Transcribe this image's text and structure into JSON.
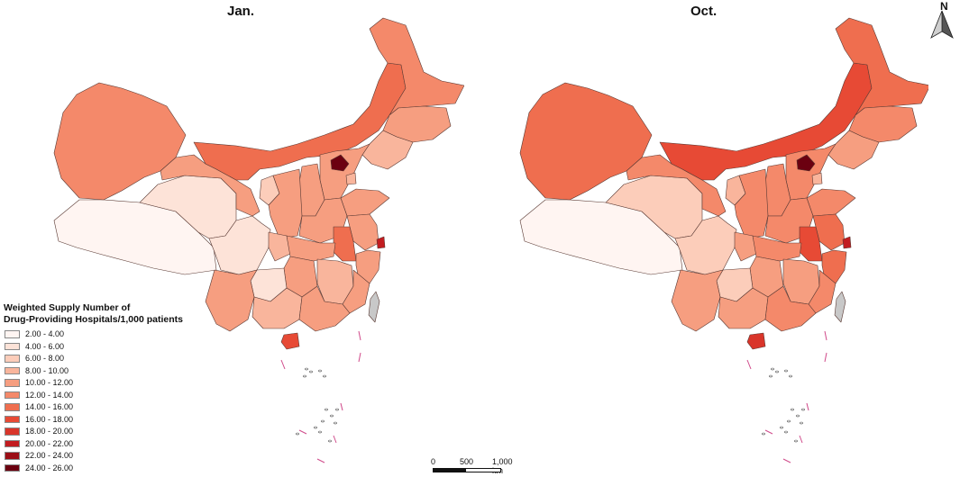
{
  "maps": [
    {
      "id": "jan",
      "title": "Jan."
    },
    {
      "id": "oct",
      "title": "Oct."
    }
  ],
  "compass": {
    "label": "N",
    "icon": "north-arrow-icon"
  },
  "legend": {
    "title_line1": "Weighted Supply Number of",
    "title_line2": "Drug-Providing Hospitals/1,000 patients",
    "classes": [
      {
        "label": "2.00 - 4.00",
        "color": "#fff5f2"
      },
      {
        "label": "4.00 - 6.00",
        "color": "#fde3d8"
      },
      {
        "label": "6.00 - 8.00",
        "color": "#fccdba"
      },
      {
        "label": "8.00 - 10.00",
        "color": "#f9b59c"
      },
      {
        "label": "10.00 - 12.00",
        "color": "#f69e80"
      },
      {
        "label": "12.00 - 14.00",
        "color": "#f4896a"
      },
      {
        "label": "14.00 - 16.00",
        "color": "#ef6e4f"
      },
      {
        "label": "16.00 - 18.00",
        "color": "#e74a35"
      },
      {
        "label": "18.00 - 20.00",
        "color": "#d9352a"
      },
      {
        "label": "20.00 - 22.00",
        "color": "#c21c20"
      },
      {
        "label": "22.00 - 24.00",
        "color": "#9b0e16"
      },
      {
        "label": "24.00 - 26.00",
        "color": "#6b0010"
      }
    ]
  },
  "scalebar": {
    "labels": [
      "0",
      "500",
      "1,000 km"
    ]
  },
  "map_fill": {
    "jan": {
      "xinjiang": 5,
      "tibet": 0,
      "qinghai": 1,
      "gansu": 4,
      "inner_mongolia": 6,
      "heilongjiang": 5,
      "jilin": 4,
      "liaoning": 3,
      "hebei": 4,
      "beijing": 11,
      "tianjin": 3,
      "shanxi": 4,
      "shaanxi": 4,
      "ningxia": 2,
      "henan": 4,
      "shandong": 4,
      "jiangsu": 4,
      "anhui": 6,
      "shanghai": 9,
      "zhejiang": 4,
      "sichuan": 1,
      "chongqing": 3,
      "hubei": 4,
      "hunan": 4,
      "jiangxi": 3,
      "fujian": 4,
      "yunnan": 4,
      "guizhou": 1,
      "guangxi": 3,
      "guangdong": 4,
      "hainan": 7,
      "taiwan": -1
    },
    "oct": {
      "xinjiang": 6,
      "tibet": 0,
      "qinghai": 2,
      "gansu": 5,
      "inner_mongolia": 7,
      "heilongjiang": 6,
      "jilin": 5,
      "liaoning": 4,
      "hebei": 5,
      "beijing": 11,
      "tianjin": 3,
      "shanxi": 5,
      "shaanxi": 5,
      "ningxia": 3,
      "henan": 5,
      "shandong": 5,
      "jiangsu": 6,
      "anhui": 7,
      "shanghai": 9,
      "zhejiang": 6,
      "sichuan": 2,
      "chongqing": 4,
      "hubei": 5,
      "hunan": 4,
      "jiangxi": 4,
      "fujian": 5,
      "yunnan": 4,
      "guizhou": 2,
      "guangxi": 4,
      "guangdong": 5,
      "hainan": 8,
      "taiwan": -1
    }
  }
}
